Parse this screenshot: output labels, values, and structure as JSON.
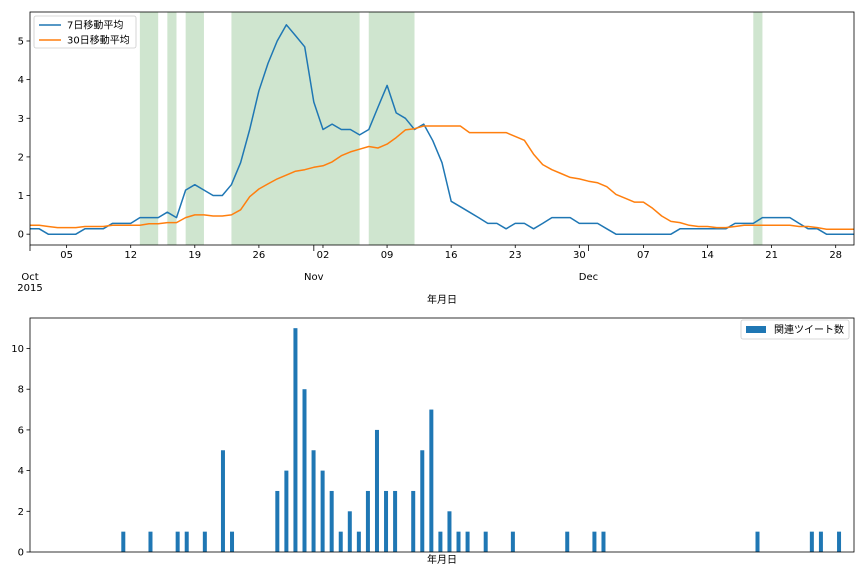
{
  "chart_data": [
    {
      "type": "line",
      "xlabel": "年月日",
      "x_axis": {
        "type": "date",
        "range": [
          "2015-10-01",
          "2015-12-30"
        ],
        "minor_ticks": [
          {
            "date": "2015-10-05",
            "label": "05"
          },
          {
            "date": "2015-10-12",
            "label": "12"
          },
          {
            "date": "2015-10-19",
            "label": "19"
          },
          {
            "date": "2015-10-26",
            "label": "26"
          },
          {
            "date": "2015-11-02",
            "label": "02"
          },
          {
            "date": "2015-11-09",
            "label": "09"
          },
          {
            "date": "2015-11-16",
            "label": "16"
          },
          {
            "date": "2015-11-23",
            "label": "23"
          },
          {
            "date": "2015-11-30",
            "label": "30"
          },
          {
            "date": "2015-12-07",
            "label": "07"
          },
          {
            "date": "2015-12-14",
            "label": "14"
          },
          {
            "date": "2015-12-21",
            "label": "21"
          },
          {
            "date": "2015-12-28",
            "label": "28"
          }
        ],
        "major_ticks": [
          {
            "date": "2015-10-01",
            "label": "Oct",
            "sublabel": "2015"
          },
          {
            "date": "2015-11-01",
            "label": "Nov",
            "sublabel": ""
          },
          {
            "date": "2015-12-01",
            "label": "Dec",
            "sublabel": ""
          }
        ]
      },
      "ylim": [
        -0.28,
        5.75
      ],
      "yticks": [
        0,
        1,
        2,
        3,
        4,
        5
      ],
      "legend": {
        "placement": "top-left"
      },
      "shaded_spans": [
        [
          "2015-10-13",
          "2015-10-15"
        ],
        [
          "2015-10-16",
          "2015-10-17"
        ],
        [
          "2015-10-18",
          "2015-10-20"
        ],
        [
          "2015-10-23",
          "2015-11-06"
        ],
        [
          "2015-11-07",
          "2015-11-12"
        ],
        [
          "2015-12-19",
          "2015-12-20"
        ]
      ],
      "span_color": "#cfe5cf",
      "series": [
        {
          "name": "7日移動平均",
          "color": "#1f77b4",
          "dates": [
            "2015-10-01",
            "2015-10-02",
            "2015-10-03",
            "2015-10-04",
            "2015-10-05",
            "2015-10-06",
            "2015-10-07",
            "2015-10-08",
            "2015-10-09",
            "2015-10-10",
            "2015-10-11",
            "2015-10-12",
            "2015-10-13",
            "2015-10-14",
            "2015-10-15",
            "2015-10-16",
            "2015-10-17",
            "2015-10-18",
            "2015-10-19",
            "2015-10-20",
            "2015-10-21",
            "2015-10-22",
            "2015-10-23",
            "2015-10-24",
            "2015-10-25",
            "2015-10-26",
            "2015-10-27",
            "2015-10-28",
            "2015-10-29",
            "2015-10-30",
            "2015-10-31",
            "2015-11-01",
            "2015-11-02",
            "2015-11-03",
            "2015-11-04",
            "2015-11-05",
            "2015-11-06",
            "2015-11-07",
            "2015-11-08",
            "2015-11-09",
            "2015-11-10",
            "2015-11-11",
            "2015-11-12",
            "2015-11-13",
            "2015-11-14",
            "2015-11-15",
            "2015-11-16",
            "2015-11-17",
            "2015-11-18",
            "2015-11-19",
            "2015-11-20",
            "2015-11-21",
            "2015-11-22",
            "2015-11-23",
            "2015-11-24",
            "2015-11-25",
            "2015-11-26",
            "2015-11-27",
            "2015-11-28",
            "2015-11-29",
            "2015-11-30",
            "2015-12-01",
            "2015-12-02",
            "2015-12-03",
            "2015-12-04",
            "2015-12-05",
            "2015-12-06",
            "2015-12-07",
            "2015-12-08",
            "2015-12-09",
            "2015-12-10",
            "2015-12-11",
            "2015-12-12",
            "2015-12-13",
            "2015-12-14",
            "2015-12-15",
            "2015-12-16",
            "2015-12-17",
            "2015-12-18",
            "2015-12-19",
            "2015-12-20",
            "2015-12-21",
            "2015-12-22",
            "2015-12-23",
            "2015-12-24",
            "2015-12-25",
            "2015-12-26",
            "2015-12-27",
            "2015-12-28",
            "2015-12-29",
            "2015-12-30"
          ],
          "values": [
            0.14,
            0.14,
            0.0,
            0.0,
            0.0,
            0.0,
            0.14,
            0.14,
            0.14,
            0.28,
            0.28,
            0.28,
            0.43,
            0.43,
            0.43,
            0.57,
            0.43,
            1.14,
            1.28,
            1.14,
            1.0,
            1.0,
            1.28,
            1.85,
            2.71,
            3.71,
            4.42,
            5.0,
            5.42,
            5.14,
            4.85,
            3.42,
            2.71,
            2.85,
            2.71,
            2.71,
            2.57,
            2.71,
            3.28,
            3.85,
            3.14,
            3.0,
            2.71,
            2.85,
            2.42,
            1.85,
            0.85,
            0.71,
            0.57,
            0.43,
            0.28,
            0.28,
            0.14,
            0.28,
            0.28,
            0.14,
            0.28,
            0.43,
            0.43,
            0.43,
            0.28,
            0.28,
            0.28,
            0.14,
            0.0,
            0.0,
            0.0,
            0.0,
            0.0,
            0.0,
            0.0,
            0.14,
            0.14,
            0.14,
            0.14,
            0.14,
            0.14,
            0.28,
            0.28,
            0.28,
            0.43,
            0.43,
            0.43,
            0.43,
            0.28,
            0.14,
            0.14,
            0.0,
            0.0,
            0.0,
            0.0
          ]
        },
        {
          "name": "30日移動平均",
          "color": "#ff7f0e",
          "dates": [
            "2015-10-01",
            "2015-10-02",
            "2015-10-03",
            "2015-10-04",
            "2015-10-05",
            "2015-10-06",
            "2015-10-07",
            "2015-10-08",
            "2015-10-09",
            "2015-10-10",
            "2015-10-11",
            "2015-10-12",
            "2015-10-13",
            "2015-10-14",
            "2015-10-15",
            "2015-10-16",
            "2015-10-17",
            "2015-10-18",
            "2015-10-19",
            "2015-10-20",
            "2015-10-21",
            "2015-10-22",
            "2015-10-23",
            "2015-10-24",
            "2015-10-25",
            "2015-10-26",
            "2015-10-27",
            "2015-10-28",
            "2015-10-29",
            "2015-10-30",
            "2015-10-31",
            "2015-11-01",
            "2015-11-02",
            "2015-11-03",
            "2015-11-04",
            "2015-11-05",
            "2015-11-06",
            "2015-11-07",
            "2015-11-08",
            "2015-11-09",
            "2015-11-10",
            "2015-11-11",
            "2015-11-12",
            "2015-11-13",
            "2015-11-14",
            "2015-11-15",
            "2015-11-16",
            "2015-11-17",
            "2015-11-18",
            "2015-11-19",
            "2015-11-20",
            "2015-11-21",
            "2015-11-22",
            "2015-11-23",
            "2015-11-24",
            "2015-11-25",
            "2015-11-26",
            "2015-11-27",
            "2015-11-28",
            "2015-11-29",
            "2015-11-30",
            "2015-12-01",
            "2015-12-02",
            "2015-12-03",
            "2015-12-04",
            "2015-12-05",
            "2015-12-06",
            "2015-12-07",
            "2015-12-08",
            "2015-12-09",
            "2015-12-10",
            "2015-12-11",
            "2015-12-12",
            "2015-12-13",
            "2015-12-14",
            "2015-12-15",
            "2015-12-16",
            "2015-12-17",
            "2015-12-18",
            "2015-12-19",
            "2015-12-20",
            "2015-12-21",
            "2015-12-22",
            "2015-12-23",
            "2015-12-24",
            "2015-12-25",
            "2015-12-26",
            "2015-12-27",
            "2015-12-28",
            "2015-12-29",
            "2015-12-30"
          ],
          "values": [
            0.23,
            0.23,
            0.2,
            0.17,
            0.17,
            0.17,
            0.2,
            0.2,
            0.2,
            0.23,
            0.23,
            0.23,
            0.23,
            0.27,
            0.27,
            0.3,
            0.3,
            0.43,
            0.5,
            0.5,
            0.47,
            0.47,
            0.5,
            0.63,
            0.97,
            1.17,
            1.3,
            1.43,
            1.53,
            1.63,
            1.67,
            1.73,
            1.77,
            1.87,
            2.03,
            2.13,
            2.2,
            2.27,
            2.23,
            2.33,
            2.5,
            2.7,
            2.73,
            2.8,
            2.8,
            2.8,
            2.8,
            2.8,
            2.63,
            2.63,
            2.63,
            2.63,
            2.63,
            2.53,
            2.43,
            2.07,
            1.8,
            1.67,
            1.57,
            1.47,
            1.43,
            1.37,
            1.33,
            1.23,
            1.03,
            0.93,
            0.83,
            0.83,
            0.67,
            0.47,
            0.33,
            0.3,
            0.23,
            0.2,
            0.2,
            0.17,
            0.17,
            0.2,
            0.23,
            0.23,
            0.23,
            0.23,
            0.23,
            0.23,
            0.2,
            0.2,
            0.17,
            0.13,
            0.13,
            0.13,
            0.13
          ]
        }
      ]
    },
    {
      "type": "bar",
      "xlabel": "年月日",
      "ylim": [
        0,
        11.5
      ],
      "yticks": [
        0,
        2,
        4,
        6,
        8,
        10
      ],
      "legend": {
        "placement": "top-right"
      },
      "series": [
        {
          "name": "関連ツイート数",
          "color": "#1f77b4",
          "values": [
            0,
            0,
            0,
            0,
            0,
            1,
            0,
            0,
            1,
            0,
            0,
            1,
            1,
            0,
            1,
            0,
            5,
            1,
            0,
            0,
            0,
            0,
            3,
            4,
            11,
            8,
            5,
            4,
            3,
            1,
            2,
            1,
            3,
            6,
            3,
            3,
            0,
            3,
            5,
            7,
            1,
            2,
            1,
            1,
            0,
            1,
            0,
            0,
            1,
            0,
            0,
            0,
            0,
            0,
            1,
            0,
            0,
            1,
            1,
            0,
            0,
            0,
            0,
            0,
            0,
            0,
            0,
            0,
            0,
            0,
            0,
            0,
            0,
            0,
            0,
            1,
            0,
            0,
            0,
            0,
            0,
            1,
            1,
            0,
            1,
            0,
            0,
            0,
            0,
            0,
            0
          ]
        }
      ]
    }
  ]
}
